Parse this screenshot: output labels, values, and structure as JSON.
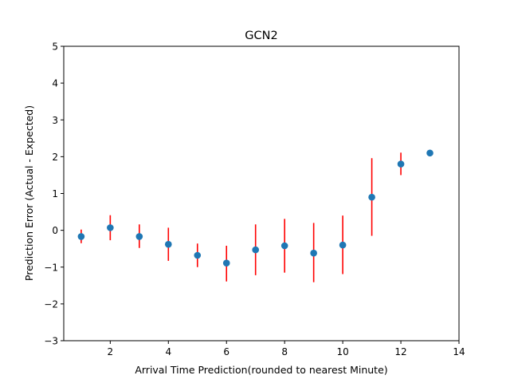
{
  "chart_data": {
    "type": "scatter",
    "title": "GCN2",
    "xlabel": "Arrival Time Prediction(rounded to nearest Minute)",
    "ylabel": "Prediction Error (Actual - Expected)",
    "xlim": [
      0.4,
      14
    ],
    "ylim": [
      -3,
      5
    ],
    "xticks": [
      2,
      4,
      6,
      8,
      10,
      12,
      14
    ],
    "xtick_labels": [
      "2",
      "4",
      "6",
      "8",
      "10",
      "12",
      "14"
    ],
    "yticks": [
      -3,
      -2,
      -1,
      0,
      1,
      2,
      3,
      4,
      5
    ],
    "ytick_labels": [
      "−3",
      "−2",
      "−1",
      "0",
      "1",
      "2",
      "3",
      "4",
      "5"
    ],
    "grid": false,
    "colors": {
      "marker": "#1f77b4",
      "errorbar": "#ff0000"
    },
    "points": [
      {
        "x": 1,
        "y": -0.17,
        "err_low": -0.35,
        "err_high": 0.02
      },
      {
        "x": 2,
        "y": 0.07,
        "err_low": -0.27,
        "err_high": 0.41
      },
      {
        "x": 3,
        "y": -0.17,
        "err_low": -0.48,
        "err_high": 0.16
      },
      {
        "x": 4,
        "y": -0.38,
        "err_low": -0.83,
        "err_high": 0.07
      },
      {
        "x": 5,
        "y": -0.68,
        "err_low": -1.0,
        "err_high": -0.36
      },
      {
        "x": 6,
        "y": -0.89,
        "err_low": -1.39,
        "err_high": -0.42
      },
      {
        "x": 7,
        "y": -0.53,
        "err_low": -1.22,
        "err_high": 0.16
      },
      {
        "x": 8,
        "y": -0.42,
        "err_low": -1.15,
        "err_high": 0.31
      },
      {
        "x": 9,
        "y": -0.62,
        "err_low": -1.41,
        "err_high": 0.2
      },
      {
        "x": 10,
        "y": -0.4,
        "err_low": -1.19,
        "err_high": 0.4
      },
      {
        "x": 11,
        "y": 0.9,
        "err_low": -0.15,
        "err_high": 1.96
      },
      {
        "x": 12,
        "y": 1.8,
        "err_low": 1.5,
        "err_high": 2.11
      },
      {
        "x": 13,
        "y": 2.1,
        "err_low": 2.1,
        "err_high": 2.1
      }
    ]
  }
}
